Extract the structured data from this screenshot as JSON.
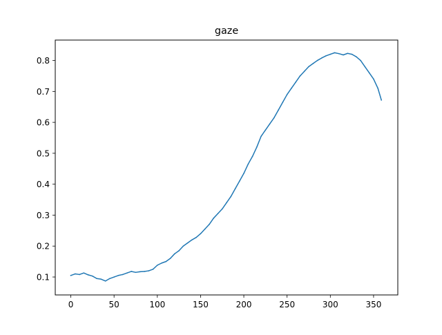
{
  "chart_data": {
    "type": "line",
    "title": "gaze",
    "xlabel": "",
    "ylabel": "",
    "xlim": [
      -18,
      378
    ],
    "ylim": [
      0.042,
      0.866
    ],
    "xticks": [
      0,
      50,
      100,
      150,
      200,
      250,
      300,
      350
    ],
    "yticks": [
      0.1,
      0.2,
      0.3,
      0.4,
      0.5,
      0.6,
      0.7,
      0.8
    ],
    "grid": false,
    "legend": "none",
    "series": [
      {
        "color": "#1f77b4",
        "x": [
          0,
          5,
          10,
          15,
          20,
          25,
          30,
          35,
          40,
          45,
          50,
          55,
          60,
          65,
          70,
          75,
          80,
          85,
          90,
          95,
          100,
          105,
          110,
          115,
          120,
          125,
          130,
          135,
          140,
          145,
          150,
          155,
          160,
          165,
          170,
          175,
          180,
          185,
          190,
          195,
          200,
          205,
          210,
          215,
          220,
          225,
          230,
          235,
          240,
          245,
          250,
          255,
          260,
          265,
          270,
          275,
          280,
          285,
          290,
          295,
          300,
          305,
          310,
          315,
          320,
          325,
          330,
          335,
          340,
          345,
          350,
          355,
          359
        ],
        "y": [
          0.105,
          0.11,
          0.108,
          0.113,
          0.107,
          0.103,
          0.095,
          0.093,
          0.087,
          0.095,
          0.1,
          0.105,
          0.108,
          0.113,
          0.118,
          0.115,
          0.117,
          0.118,
          0.12,
          0.125,
          0.138,
          0.145,
          0.15,
          0.16,
          0.175,
          0.185,
          0.2,
          0.21,
          0.22,
          0.228,
          0.24,
          0.255,
          0.27,
          0.29,
          0.305,
          0.32,
          0.34,
          0.36,
          0.385,
          0.41,
          0.435,
          0.465,
          0.49,
          0.52,
          0.555,
          0.575,
          0.595,
          0.615,
          0.64,
          0.665,
          0.69,
          0.71,
          0.73,
          0.75,
          0.765,
          0.78,
          0.79,
          0.8,
          0.808,
          0.815,
          0.82,
          0.825,
          0.822,
          0.818,
          0.823,
          0.82,
          0.812,
          0.8,
          0.78,
          0.76,
          0.74,
          0.71,
          0.672
        ]
      }
    ]
  }
}
